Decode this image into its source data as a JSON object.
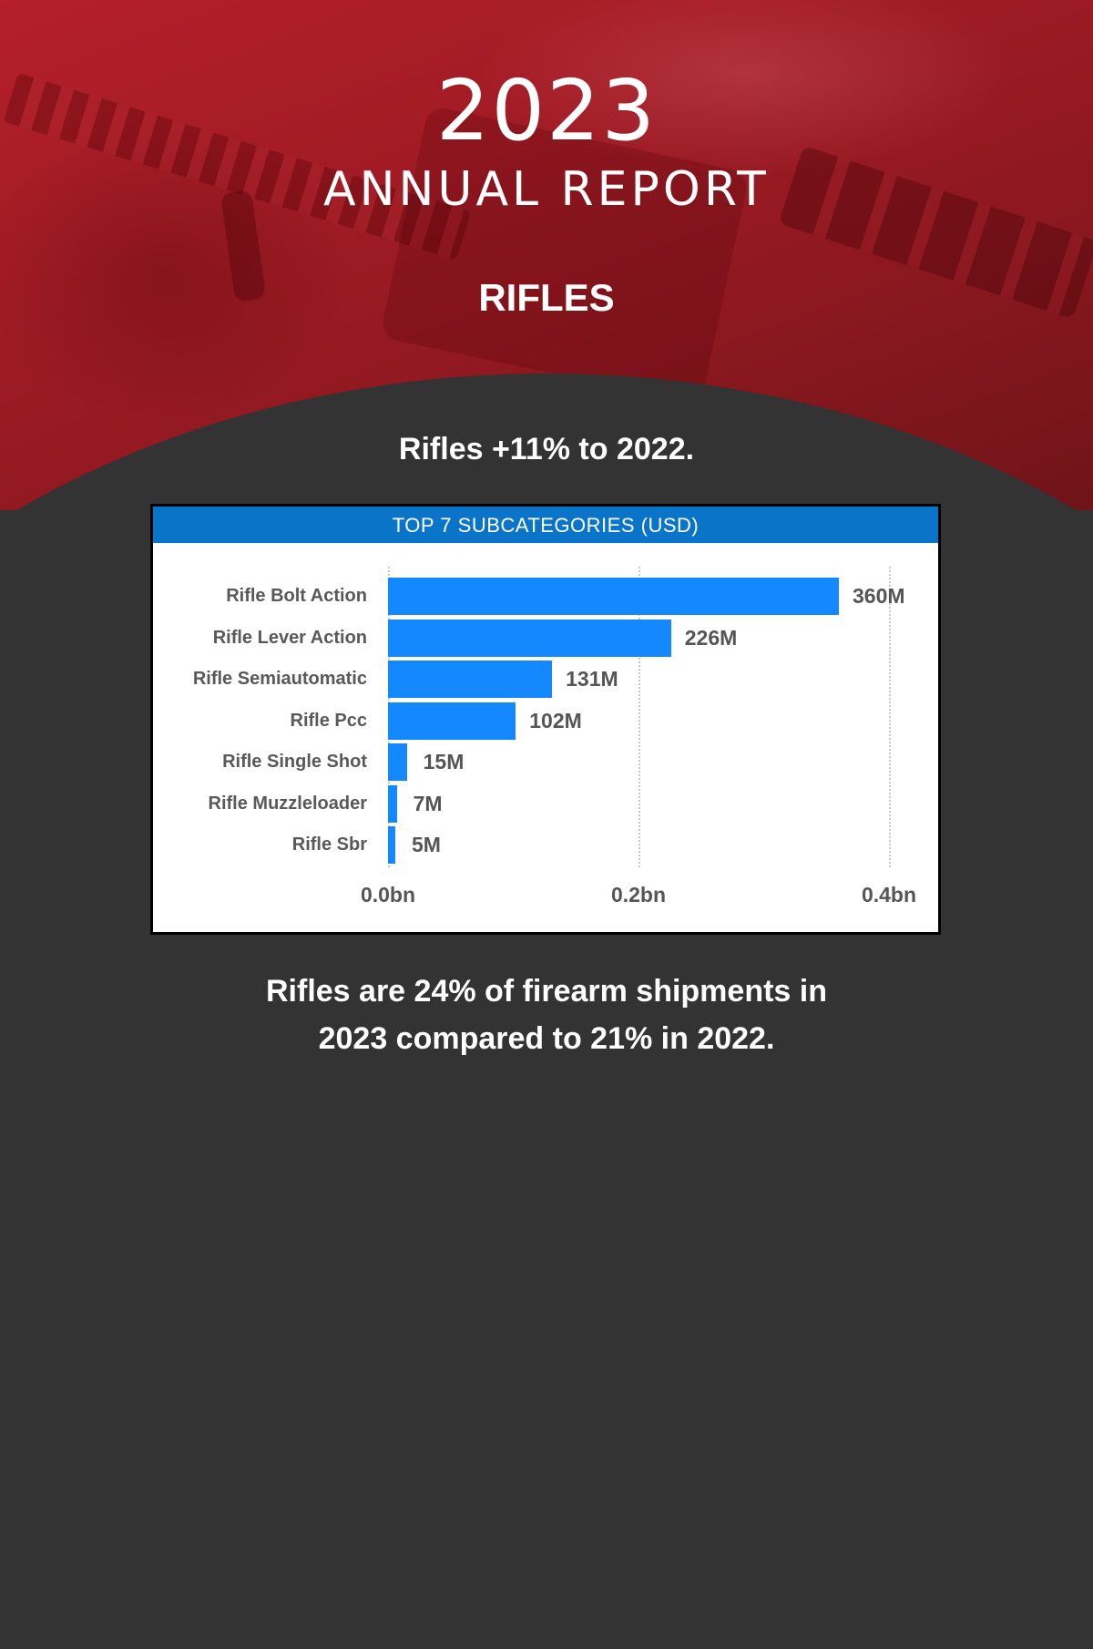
{
  "hero": {
    "year": "2023",
    "report_title": "ANNUAL REPORT",
    "category": "RIFLES"
  },
  "headline": "Rifles +11% to 2022.",
  "chart": {
    "header": "TOP 7 SUBCATEGORIES (USD)",
    "colors": {
      "bar": "#1488ff",
      "header": "#0a74c9",
      "label": "#595959"
    }
  },
  "footer": {
    "line1": "Rifles are 24% of firearm shipments in",
    "line2": "2023 compared to 21% in 2022."
  },
  "chart_data": {
    "type": "bar",
    "orientation": "horizontal",
    "title": "TOP 7 SUBCATEGORIES (USD)",
    "categories": [
      "Rifle Bolt Action",
      "Rifle Lever Action",
      "Rifle Semiautomatic",
      "Rifle Pcc",
      "Rifle Single Shot",
      "Rifle Muzzleloader",
      "Rifle Sbr"
    ],
    "values": [
      360,
      226,
      131,
      102,
      15,
      7,
      5
    ],
    "value_labels": [
      "360M",
      "226M",
      "131M",
      "102M",
      "15M",
      "7M",
      "5M"
    ],
    "unit": "million USD",
    "xlabel": "",
    "ylabel": "",
    "xlim": [
      0,
      0.4
    ],
    "x_ticks": [
      "0.0bn",
      "0.2bn",
      "0.4bn"
    ],
    "grid": "vertical dotted",
    "legend": "none"
  }
}
